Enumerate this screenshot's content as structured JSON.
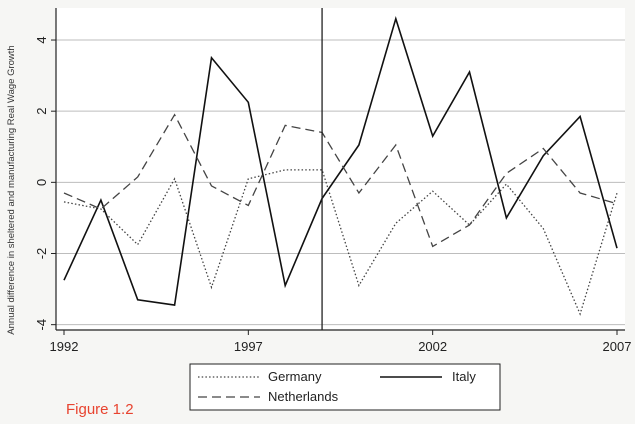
{
  "caption": {
    "text": "Figure 1.2",
    "color": "#e8432f"
  },
  "chart_data": {
    "type": "line",
    "xlabel": "",
    "ylabel": "Annual difference in sheltered and manufacturing Real Wage Growth",
    "x": [
      1992,
      1993,
      1994,
      1995,
      1996,
      1997,
      1998,
      1999,
      2000,
      2001,
      2002,
      2003,
      2004,
      2005,
      2006,
      2007
    ],
    "xlim": [
      1992,
      2007
    ],
    "ylim": [
      -4.15,
      4.9
    ],
    "xticks": [
      1992,
      1997,
      2002,
      2007
    ],
    "yticks": [
      -4,
      -2,
      0,
      2,
      4
    ],
    "grid": true,
    "vline": 1999,
    "series": [
      {
        "name": "Germany",
        "style": "dotted",
        "values": [
          -0.55,
          -0.75,
          -1.75,
          0.1,
          -2.95,
          0.1,
          0.35,
          0.35,
          -2.9,
          -1.15,
          -0.25,
          -1.2,
          -0.05,
          -1.3,
          -3.7,
          -0.3
        ]
      },
      {
        "name": "Italy",
        "style": "solid",
        "values": [
          -2.75,
          -0.5,
          -3.3,
          -3.45,
          3.5,
          2.25,
          -2.9,
          -0.45,
          1.05,
          4.6,
          1.3,
          3.1,
          -1.0,
          0.75,
          1.85,
          -1.85
        ]
      },
      {
        "name": "Netherlands",
        "style": "dashed",
        "values": [
          -0.3,
          -0.75,
          0.15,
          1.9,
          -0.1,
          -0.65,
          1.6,
          1.4,
          -0.3,
          1.05,
          -1.8,
          -1.2,
          0.25,
          0.95,
          -0.3,
          -0.6
        ]
      }
    ],
    "legend": {
      "position": "bottom"
    }
  }
}
